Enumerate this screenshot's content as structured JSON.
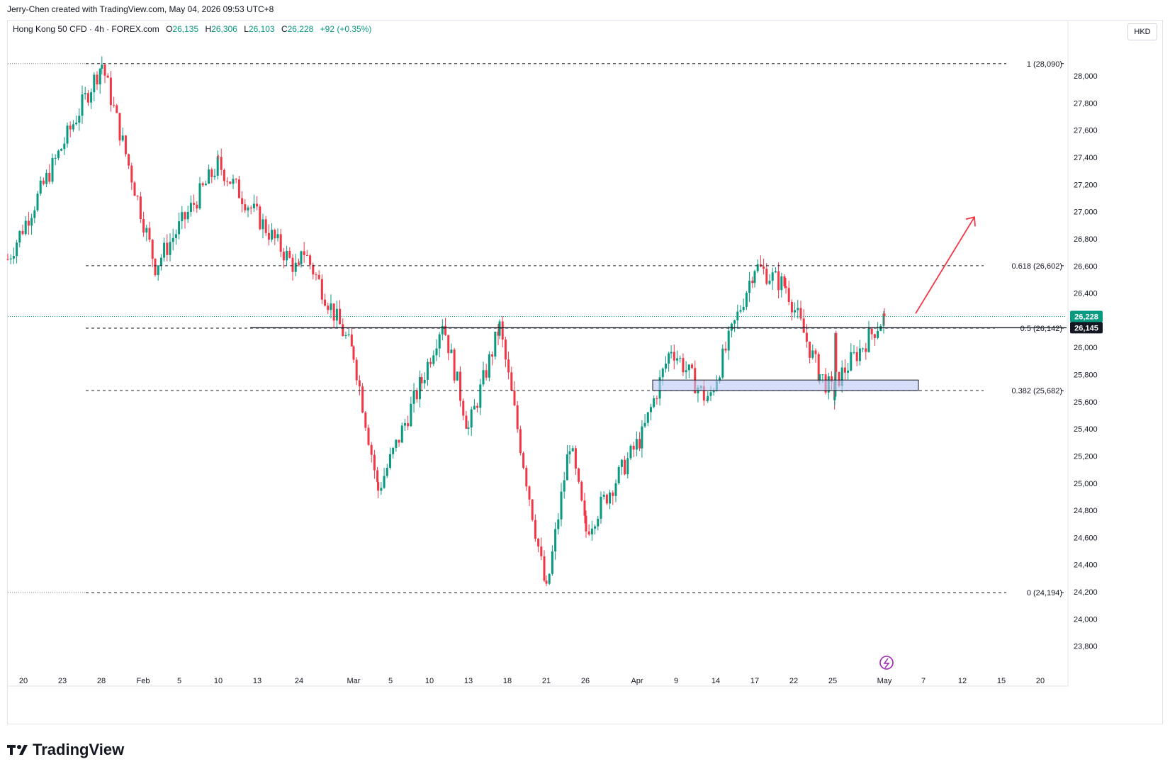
{
  "header": {
    "credit": "Jerry-Chen created with TradingView.com, May 04, 2026 09:53 UTC+8"
  },
  "legend": {
    "symbol": "Hong Kong 50 CFD · 4h · FOREX.com",
    "open_label": "O",
    "open": "26,135",
    "high_label": "H",
    "high": "26,306",
    "low_label": "L",
    "low": "26,103",
    "close_label": "C",
    "close": "26,228",
    "change": "+92 (+0.35%)"
  },
  "currency_button": "HKD",
  "brand": "TradingView",
  "colors": {
    "up": "#089981",
    "down": "#f23645",
    "accent": "#2962ff",
    "zone": "#bcc8f7",
    "arrow": "#f23645"
  },
  "chart_data": {
    "type": "candlestick",
    "timeframe": "4h",
    "ylim": [
      23600,
      28350
    ],
    "y_ticks": [
      23800,
      24000,
      24200,
      24400,
      24600,
      24800,
      25000,
      25200,
      25400,
      25600,
      25800,
      26000,
      26200,
      26400,
      26600,
      26800,
      27000,
      27200,
      27400,
      27600,
      27800,
      28000
    ],
    "y_tick_labels": [
      "23,800",
      "24,000",
      "24,200",
      "24,400",
      "24,600",
      "24,800",
      "25,000",
      "25,200",
      "25,400",
      "25,600",
      "25,800",
      "26,000",
      "26,200",
      "26,400",
      "26,600",
      "26,800",
      "27,000",
      "27,200",
      "27,400",
      "27,600",
      "27,800",
      "28,000"
    ],
    "x_labels": [
      "20",
      "23",
      "28",
      "Feb",
      "5",
      "10",
      "13",
      "24",
      "Mar",
      "5",
      "10",
      "13",
      "18",
      "21",
      "26",
      "Apr",
      "9",
      "14",
      "17",
      "22",
      "25",
      "May",
      "7",
      "12",
      "15",
      "20"
    ],
    "fibonacci": [
      {
        "level": "1",
        "price": 28090,
        "label": "1 (28,090)"
      },
      {
        "level": "0.618",
        "price": 26602,
        "label": "0.618 (26,602)"
      },
      {
        "level": "0.5",
        "price": 26142,
        "label": "0.5 (26,142)"
      },
      {
        "level": "0.382",
        "price": 25682,
        "label": "0.382 (25,682)"
      },
      {
        "level": "0",
        "price": 24194,
        "label": "0 (24,194)"
      }
    ],
    "last_price": 26228,
    "last_price_label": "26,228",
    "horizontal_line": 26145,
    "horizontal_line_label": "26,145",
    "support_zone": {
      "low": 25682,
      "high": 25760
    },
    "projection_arrow": {
      "from_price": 26250,
      "to_price": 26960
    },
    "key_points": [
      {
        "date": "Jan 19",
        "price": 26650
      },
      {
        "date": "Jan 29",
        "price": 28090
      },
      {
        "date": "Feb 3",
        "price": 26600
      },
      {
        "date": "Feb 10",
        "price": 27350
      },
      {
        "date": "Feb 24",
        "price": 26550
      },
      {
        "date": "Feb 27",
        "price": 26750
      },
      {
        "date": "Mar 2",
        "price": 25950
      },
      {
        "date": "Mar 4",
        "price": 24950
      },
      {
        "date": "Mar 9",
        "price": 25750
      },
      {
        "date": "Mar 11",
        "price": 26200
      },
      {
        "date": "Mar 13",
        "price": 25400
      },
      {
        "date": "Mar 17",
        "price": 26150
      },
      {
        "date": "Mar 21",
        "price": 24194
      },
      {
        "date": "Mar 24",
        "price": 25300
      },
      {
        "date": "Mar 27",
        "price": 24650
      },
      {
        "date": "Apr 2",
        "price": 25350
      },
      {
        "date": "Apr 8",
        "price": 26000
      },
      {
        "date": "Apr 13",
        "price": 25600
      },
      {
        "date": "Apr 17",
        "price": 26602
      },
      {
        "date": "Apr 21",
        "price": 26450
      },
      {
        "date": "Apr 24",
        "price": 25800
      },
      {
        "date": "Apr 28",
        "price": 25650
      },
      {
        "date": "Apr 29",
        "price": 26050
      },
      {
        "date": "Apr 30",
        "price": 25750
      },
      {
        "date": "May 1",
        "price": 26228
      }
    ]
  }
}
